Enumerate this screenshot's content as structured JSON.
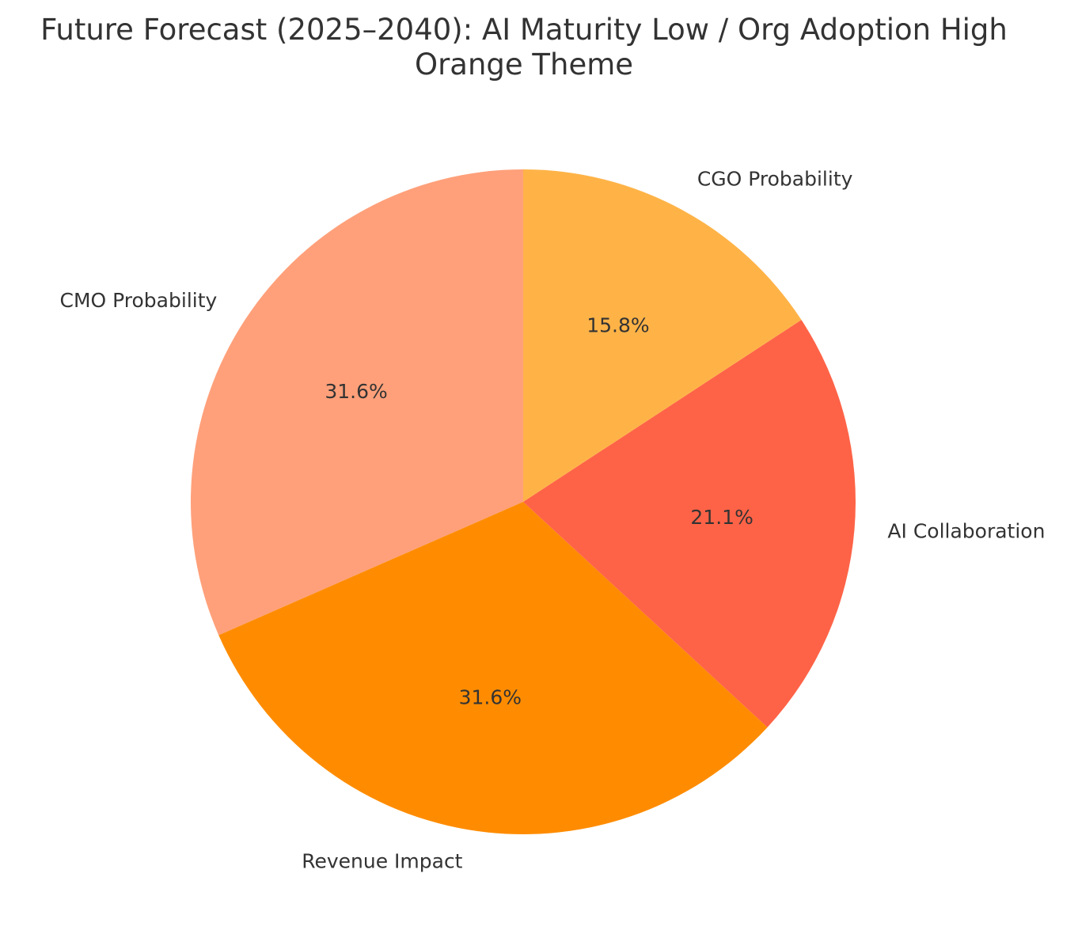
{
  "chart_data": {
    "type": "pie",
    "title": "Future Forecast (2025–2040): AI Maturity Low / Org Adoption High",
    "subtitle": "Orange Theme",
    "start_angle_deg": 90,
    "direction": "counterclockwise",
    "slices": [
      {
        "label": "CMO Probability",
        "value": 31.6,
        "pct_label": "31.6%",
        "color": "#FFA07A"
      },
      {
        "label": "Revenue Impact",
        "value": 31.6,
        "pct_label": "31.6%",
        "color": "#FF8C00"
      },
      {
        "label": "AI Collaboration",
        "value": 21.1,
        "pct_label": "21.1%",
        "color": "#FF6347"
      },
      {
        "label": "CGO Probability",
        "value": 15.8,
        "pct_label": "15.8%",
        "color": "#FFB347"
      }
    ],
    "legend": "none"
  }
}
